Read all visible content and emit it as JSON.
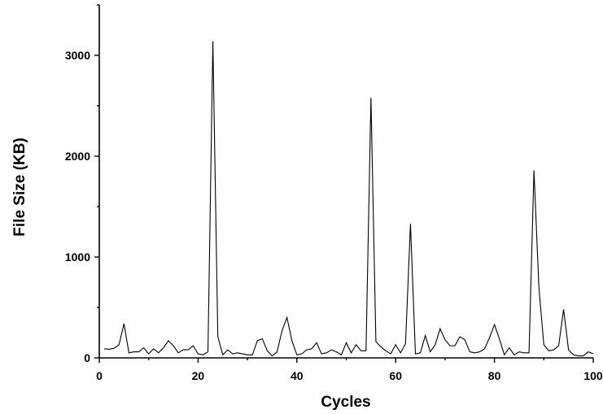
{
  "chart_data": {
    "type": "line",
    "title": "",
    "xlabel": "Cycles",
    "ylabel": "File Size (KB)",
    "xlim": [
      0,
      100
    ],
    "ylim": [
      0,
      3500
    ],
    "x_ticks": [
      0,
      20,
      40,
      60,
      80,
      100
    ],
    "y_ticks": [
      0,
      1000,
      2000,
      3000
    ],
    "x_tick_labels": [
      "0",
      "20",
      "40",
      "60",
      "80",
      "100"
    ],
    "y_tick_labels": [
      "0",
      "1000",
      "2000",
      "3000"
    ],
    "grid": false,
    "legend": "none",
    "line_color": "#000000",
    "series": [
      {
        "x": [
          1,
          2,
          3,
          4,
          5,
          6,
          7,
          8,
          9,
          10,
          11,
          12,
          13,
          14,
          15,
          16,
          17,
          18,
          19,
          20,
          21,
          22,
          23,
          24,
          25,
          26,
          27,
          28,
          29,
          30,
          31,
          32,
          33,
          34,
          35,
          36,
          37,
          38,
          39,
          40,
          41,
          42,
          43,
          44,
          45,
          46,
          47,
          48,
          49,
          50,
          51,
          52,
          53,
          54,
          55,
          56,
          57,
          58,
          59,
          60,
          61,
          62,
          63,
          64,
          65,
          66,
          67,
          68,
          69,
          70,
          71,
          72,
          73,
          74,
          75,
          76,
          77,
          78,
          79,
          80,
          81,
          82,
          83,
          84,
          85,
          86,
          87,
          88,
          89,
          90,
          91,
          92,
          93,
          94,
          95,
          96,
          97,
          98,
          99,
          100
        ],
        "values": [
          90,
          85,
          95,
          130,
          340,
          50,
          60,
          60,
          100,
          40,
          90,
          50,
          100,
          170,
          120,
          50,
          80,
          80,
          120,
          40,
          30,
          60,
          3140,
          210,
          30,
          80,
          40,
          50,
          40,
          30,
          30,
          170,
          190,
          70,
          20,
          60,
          270,
          400,
          170,
          30,
          40,
          80,
          90,
          150,
          40,
          50,
          80,
          60,
          30,
          150,
          50,
          130,
          70,
          70,
          2580,
          160,
          110,
          70,
          40,
          130,
          50,
          140,
          1330,
          40,
          50,
          220,
          60,
          130,
          290,
          180,
          120,
          120,
          210,
          180,
          60,
          50,
          60,
          90,
          200,
          330,
          190,
          30,
          100,
          30,
          60,
          50,
          50,
          1860,
          700,
          130,
          70,
          80,
          120,
          480,
          80,
          30,
          20,
          20,
          60,
          40
        ]
      }
    ]
  }
}
